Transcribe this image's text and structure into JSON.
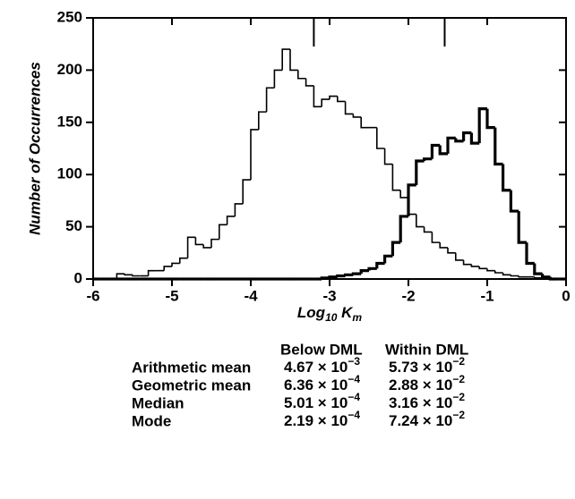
{
  "chart_data": {
    "type": "histogram",
    "y_label": "Number of Occurrences",
    "x_label_parts": [
      "Log",
      "10",
      " K",
      "m"
    ],
    "bins": [
      -6.0,
      -5.9,
      -5.8,
      -5.7,
      -5.6,
      -5.5,
      -5.4,
      -5.3,
      -5.2,
      -5.1,
      -5.0,
      -4.9,
      -4.8,
      -4.7,
      -4.6,
      -4.5,
      -4.4,
      -4.3,
      -4.2,
      -4.1,
      -4.0,
      -3.9,
      -3.8,
      -3.7,
      -3.6,
      -3.5,
      -3.4,
      -3.3,
      -3.2,
      -3.1,
      -3.0,
      -2.9,
      -2.8,
      -2.7,
      -2.6,
      -2.5,
      -2.4,
      -2.3,
      -2.2,
      -2.1,
      -2.0,
      -1.9,
      -1.8,
      -1.7,
      -1.6,
      -1.5,
      -1.4,
      -1.3,
      -1.2,
      -1.1,
      -1.0,
      -0.9,
      -0.8,
      -0.7,
      -0.6,
      -0.5,
      -0.4,
      -0.3,
      -0.2,
      -0.1,
      0
    ],
    "series": [
      {
        "name": "Below DML",
        "color": "#000000",
        "width": 1.6,
        "values": [
          0,
          0,
          0,
          5,
          4,
          3,
          3,
          8,
          8,
          12,
          15,
          20,
          40,
          33,
          30,
          38,
          52,
          60,
          72,
          95,
          143,
          160,
          183,
          200,
          220,
          200,
          192,
          185,
          165,
          172,
          175,
          170,
          158,
          155,
          145,
          145,
          125,
          110,
          85,
          78,
          62,
          50,
          45,
          35,
          30,
          25,
          18,
          14,
          12,
          10,
          8,
          6,
          4,
          3,
          2,
          2,
          1,
          1,
          0,
          0
        ]
      },
      {
        "name": "Within DML",
        "color": "#000000",
        "width": 3.2,
        "values": [
          0,
          0,
          0,
          0,
          0,
          0,
          0,
          0,
          0,
          0,
          0,
          0,
          0,
          0,
          0,
          0,
          0,
          0,
          0,
          0,
          0,
          0,
          0,
          0,
          0,
          0,
          0,
          0,
          0,
          1,
          2,
          3,
          4,
          5,
          8,
          10,
          15,
          22,
          35,
          60,
          90,
          113,
          115,
          128,
          120,
          135,
          132,
          140,
          130,
          163,
          145,
          110,
          85,
          65,
          35,
          15,
          5,
          2,
          0,
          0
        ]
      }
    ],
    "top_markers": [
      -3.2,
      -1.54
    ],
    "xlim": [
      -6,
      0
    ],
    "xticks": [
      -6,
      -5,
      -4,
      -3,
      -2,
      -1,
      0
    ],
    "ylim": [
      0,
      250
    ],
    "yticks": [
      0,
      50,
      100,
      150,
      200,
      250
    ]
  },
  "table": {
    "header": [
      "Below DML",
      "Within DML"
    ],
    "rows": [
      {
        "label": "Arithmetic mean",
        "cells": [
          [
            "4.67 × 10",
            "−3"
          ],
          [
            "5.73 × 10",
            "−2"
          ]
        ]
      },
      {
        "label": "Geometric mean",
        "cells": [
          [
            "6.36 × 10",
            "−4"
          ],
          [
            "2.88 × 10",
            "−2"
          ]
        ]
      },
      {
        "label": "Median",
        "cells": [
          [
            "5.01 × 10",
            "−4"
          ],
          [
            "3.16 × 10",
            "−2"
          ]
        ]
      },
      {
        "label": "Mode",
        "cells": [
          [
            "2.19 × 10",
            "−4"
          ],
          [
            "7.24 × 10",
            "−2"
          ]
        ]
      }
    ]
  }
}
